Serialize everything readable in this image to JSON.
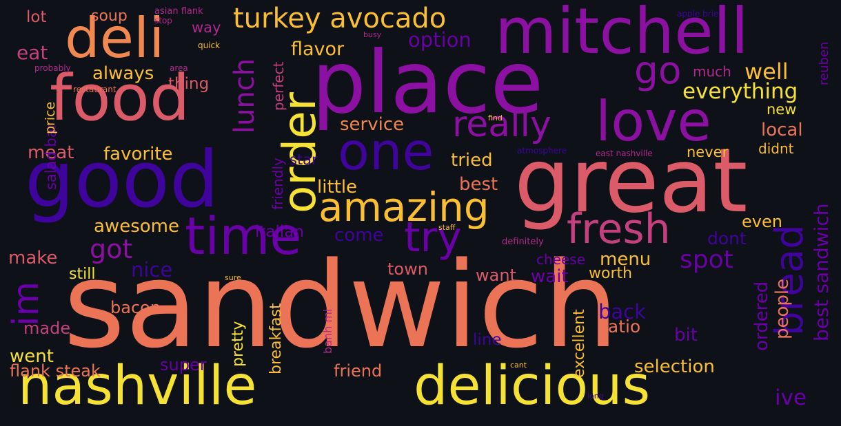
{
  "palette": {
    "background": "#0e1117",
    "yellow": "#f5e234",
    "gold": "#fbbf31",
    "orange": "#f1884f",
    "salmon": "#ec7456",
    "rose": "#db5c68",
    "pink": "#c4407e",
    "magenta": "#b02a90",
    "purple": "#8c10a2",
    "violet": "#6a00a8",
    "indigo": "#3e049c"
  },
  "words": [
    {
      "text": "sandwich",
      "color": "salmon"
    },
    {
      "text": "great",
      "color": "rose"
    },
    {
      "text": "place",
      "color": "purple"
    },
    {
      "text": "good",
      "color": "indigo"
    },
    {
      "text": "food",
      "color": "rose"
    },
    {
      "text": "mitchell",
      "color": "purple"
    },
    {
      "text": "deli",
      "color": "orange"
    },
    {
      "text": "love",
      "color": "purple"
    },
    {
      "text": "nashville",
      "color": "yellow"
    },
    {
      "text": "delicious",
      "color": "yellow"
    },
    {
      "text": "one",
      "color": "indigo"
    },
    {
      "text": "time",
      "color": "violet"
    },
    {
      "text": "order",
      "color": "yellow"
    },
    {
      "text": "amazing",
      "color": "gold"
    },
    {
      "text": "fresh",
      "color": "pink"
    },
    {
      "text": "try",
      "color": "violet"
    },
    {
      "text": "really",
      "color": "purple"
    },
    {
      "text": "bread",
      "color": "indigo"
    },
    {
      "text": "go",
      "color": "purple"
    },
    {
      "text": "turkey avocado",
      "color": "gold"
    },
    {
      "text": "im",
      "color": "violet"
    },
    {
      "text": "lunch",
      "color": "purple"
    },
    {
      "text": "best sandwich",
      "color": "violet"
    },
    {
      "text": "spot",
      "color": "violet"
    },
    {
      "text": "got",
      "color": "purple"
    },
    {
      "text": "well",
      "color": "gold"
    },
    {
      "text": "everything",
      "color": "yellow"
    },
    {
      "text": "flavor",
      "color": "gold"
    },
    {
      "text": "option",
      "color": "violet"
    },
    {
      "text": "always",
      "color": "gold"
    },
    {
      "text": "meat",
      "color": "rose"
    },
    {
      "text": "favorite",
      "color": "gold"
    },
    {
      "text": "service",
      "color": "orange"
    },
    {
      "text": "tried",
      "color": "gold"
    },
    {
      "text": "best",
      "color": "salmon"
    },
    {
      "text": "little",
      "color": "gold"
    },
    {
      "text": "awesome",
      "color": "gold"
    },
    {
      "text": "make",
      "color": "rose"
    },
    {
      "text": "nice",
      "color": "indigo"
    },
    {
      "text": "come",
      "color": "indigo"
    },
    {
      "text": "menu",
      "color": "gold"
    },
    {
      "text": "wait",
      "color": "violet"
    },
    {
      "text": "worth",
      "color": "gold"
    },
    {
      "text": "back",
      "color": "indigo"
    },
    {
      "text": "patio",
      "color": "salmon"
    },
    {
      "text": "bit",
      "color": "violet"
    },
    {
      "text": "people",
      "color": "salmon"
    },
    {
      "text": "ordered",
      "color": "violet"
    },
    {
      "text": "ive",
      "color": "violet"
    },
    {
      "text": "selection",
      "color": "gold"
    },
    {
      "text": "excellent",
      "color": "gold"
    },
    {
      "text": "pretty",
      "color": "yellow"
    },
    {
      "text": "breakfast",
      "color": "gold"
    },
    {
      "text": "flank steak",
      "color": "salmon"
    },
    {
      "text": "went",
      "color": "yellow"
    },
    {
      "text": "made",
      "color": "pink"
    },
    {
      "text": "bacon",
      "color": "salmon"
    },
    {
      "text": "still",
      "color": "yellow"
    },
    {
      "text": "super",
      "color": "violet"
    },
    {
      "text": "friend",
      "color": "salmon"
    },
    {
      "text": "line",
      "color": "indigo"
    },
    {
      "text": "want",
      "color": "rose"
    },
    {
      "text": "town",
      "color": "rose"
    },
    {
      "text": "cheese",
      "color": "violet"
    },
    {
      "text": "italian",
      "color": "violet"
    },
    {
      "text": "friendly",
      "color": "violet"
    },
    {
      "text": "perfect",
      "color": "pink"
    },
    {
      "text": "thing",
      "color": "rose"
    },
    {
      "text": "way",
      "color": "magenta"
    },
    {
      "text": "eat",
      "color": "pink"
    },
    {
      "text": "lot",
      "color": "rose"
    },
    {
      "text": "soup",
      "color": "salmon"
    },
    {
      "text": "salad bar",
      "color": "violet"
    },
    {
      "text": "price",
      "color": "gold"
    },
    {
      "text": "star",
      "color": "indigo"
    },
    {
      "text": "even",
      "color": "gold"
    },
    {
      "text": "dont",
      "color": "indigo"
    },
    {
      "text": "local",
      "color": "salmon"
    },
    {
      "text": "new",
      "color": "yellow"
    },
    {
      "text": "never",
      "color": "gold"
    },
    {
      "text": "didnt",
      "color": "gold"
    },
    {
      "text": "much",
      "color": "magenta"
    },
    {
      "text": "reuben",
      "color": "violet"
    },
    {
      "text": "banh mi",
      "color": "magenta"
    },
    {
      "text": "asian flank",
      "color": "magenta"
    },
    {
      "text": "stop",
      "color": "magenta"
    },
    {
      "text": "quick",
      "color": "gold"
    },
    {
      "text": "probably",
      "color": "magenta"
    },
    {
      "text": "restaurant",
      "color": "salmon"
    },
    {
      "text": "area",
      "color": "magenta"
    },
    {
      "text": "busy",
      "color": "magenta"
    },
    {
      "text": "apple brie",
      "color": "indigo"
    },
    {
      "text": "find",
      "color": "gold"
    },
    {
      "text": "atmosphere",
      "color": "indigo"
    },
    {
      "text": "east nashville",
      "color": "magenta"
    },
    {
      "text": "staff",
      "color": "gold"
    },
    {
      "text": "definitely",
      "color": "magenta"
    },
    {
      "text": "sure",
      "color": "gold"
    },
    {
      "text": "cant",
      "color": "gold"
    },
    {
      "text": "long",
      "color": "indigo"
    }
  ]
}
